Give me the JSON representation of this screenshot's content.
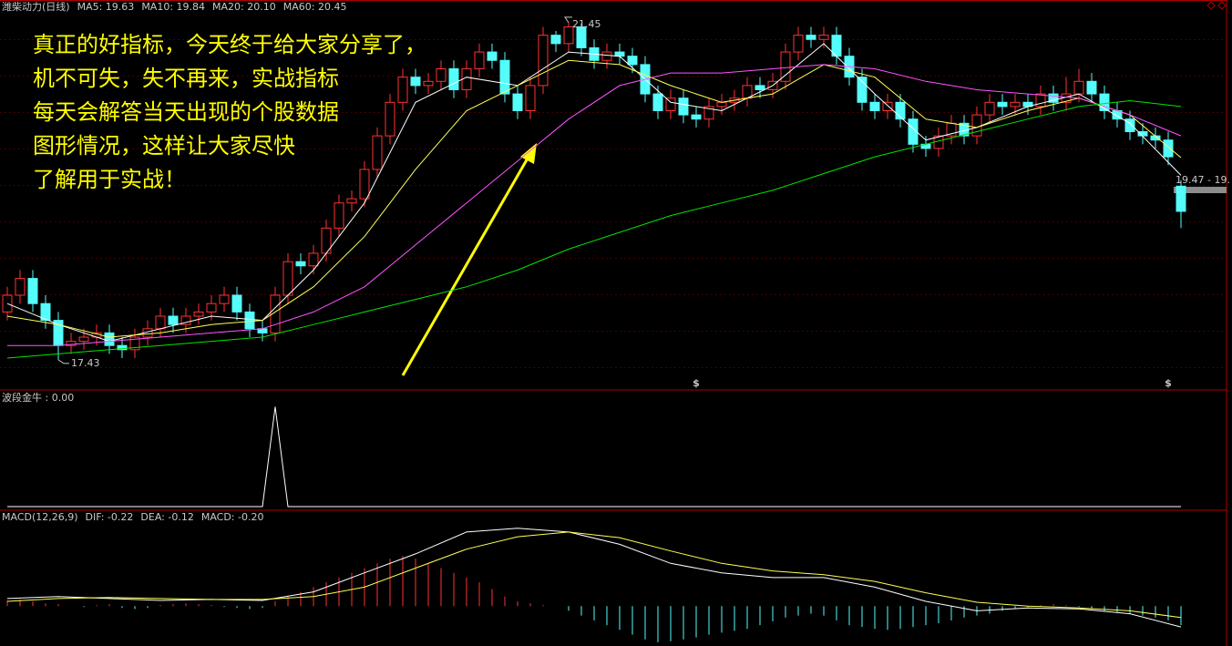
{
  "overlay_text": [
    "真正的好指标，今天终于给大家分享了，",
    "机不可失，失不再来，实战指标",
    "每天会解答当天出现的个股数据",
    "图形情况，这样让大家尽快",
    "了解用于实战！"
  ],
  "chart_data": [
    {
      "type": "candlestick",
      "title": "潍柴动力(日线)",
      "ylim": [
        17.07,
        21.72
      ],
      "up_color": "#ff3232",
      "down_color": "#54fcfc",
      "open": [
        18.0,
        18.2,
        18.4,
        18.1,
        17.9,
        17.6,
        17.65,
        17.7,
        17.75,
        17.6,
        17.55,
        17.7,
        17.8,
        17.95,
        17.85,
        17.95,
        18.0,
        18.1,
        18.2,
        18.0,
        17.8,
        17.75,
        18.2,
        18.6,
        18.55,
        18.7,
        19.0,
        19.3,
        19.35,
        19.7,
        20.1,
        20.5,
        20.8,
        20.7,
        20.75,
        20.9,
        20.65,
        20.9,
        21.1,
        21.0,
        20.6,
        20.4,
        20.7,
        21.3,
        21.2,
        21.4,
        21.15,
        21.0,
        21.1,
        21.05,
        20.95,
        20.6,
        20.4,
        20.55,
        20.35,
        20.3,
        20.45,
        20.5,
        20.55,
        20.7,
        20.65,
        20.75,
        21.1,
        21.3,
        21.25,
        21.3,
        21.05,
        20.8,
        20.5,
        20.4,
        20.5,
        20.3,
        20.0,
        19.95,
        20.1,
        20.25,
        20.1,
        20.35,
        20.5,
        20.45,
        20.5,
        20.45,
        20.6,
        20.5,
        20.6,
        20.75,
        20.6,
        20.4,
        20.3,
        20.15,
        20.1,
        20.05,
        19.5
      ],
      "high": [
        18.3,
        18.5,
        18.5,
        18.2,
        18.0,
        17.75,
        17.8,
        17.85,
        17.85,
        17.7,
        17.8,
        17.9,
        18.05,
        18.05,
        18.05,
        18.1,
        18.2,
        18.3,
        18.3,
        18.1,
        17.9,
        18.3,
        18.7,
        18.7,
        18.8,
        19.1,
        19.4,
        19.45,
        19.8,
        20.2,
        20.6,
        20.9,
        20.9,
        20.85,
        21.0,
        21.0,
        21.0,
        21.2,
        21.2,
        21.1,
        20.7,
        20.8,
        21.4,
        21.35,
        21.45,
        21.44,
        21.25,
        21.2,
        21.2,
        21.15,
        21.05,
        20.7,
        20.65,
        20.65,
        20.45,
        20.55,
        20.6,
        20.65,
        20.8,
        20.8,
        20.85,
        21.2,
        21.4,
        21.4,
        21.4,
        21.4,
        21.15,
        20.9,
        20.6,
        20.6,
        20.6,
        20.4,
        20.1,
        20.2,
        20.35,
        20.35,
        20.45,
        20.6,
        20.6,
        20.6,
        20.6,
        20.7,
        20.7,
        20.8,
        20.9,
        20.85,
        20.7,
        20.5,
        20.4,
        20.25,
        20.2,
        20.15,
        19.57
      ],
      "low": [
        17.9,
        18.1,
        18.0,
        17.8,
        17.43,
        17.5,
        17.55,
        17.6,
        17.5,
        17.45,
        17.45,
        17.6,
        17.7,
        17.75,
        17.75,
        17.85,
        17.9,
        18.0,
        17.9,
        17.7,
        17.65,
        17.65,
        18.1,
        18.45,
        18.45,
        18.6,
        18.9,
        19.2,
        19.25,
        19.6,
        20.0,
        20.4,
        20.6,
        20.6,
        20.65,
        20.55,
        20.55,
        20.8,
        20.9,
        20.5,
        20.3,
        20.3,
        20.6,
        21.1,
        21.1,
        21.05,
        20.9,
        20.9,
        20.95,
        20.85,
        20.5,
        20.3,
        20.3,
        20.25,
        20.2,
        20.2,
        20.35,
        20.4,
        20.45,
        20.55,
        20.55,
        20.65,
        21.0,
        21.15,
        21.15,
        20.95,
        20.7,
        20.4,
        20.3,
        20.3,
        20.2,
        19.9,
        19.85,
        19.85,
        20.0,
        20.0,
        20.0,
        20.25,
        20.35,
        20.35,
        20.35,
        20.35,
        20.4,
        20.4,
        20.5,
        20.5,
        20.3,
        20.2,
        20.05,
        20.0,
        19.95,
        19.75,
        19.0
      ],
      "close": [
        18.2,
        18.4,
        18.1,
        17.9,
        17.6,
        17.65,
        17.7,
        17.75,
        17.6,
        17.55,
        17.7,
        17.8,
        17.95,
        17.85,
        17.95,
        18.0,
        18.1,
        18.2,
        18.0,
        17.8,
        17.75,
        18.2,
        18.6,
        18.55,
        18.7,
        19.0,
        19.3,
        19.35,
        19.7,
        20.1,
        20.5,
        20.8,
        20.7,
        20.75,
        20.9,
        20.65,
        20.9,
        21.1,
        21.0,
        20.6,
        20.4,
        20.7,
        21.3,
        21.2,
        21.4,
        21.15,
        21.0,
        21.1,
        21.05,
        20.95,
        20.6,
        20.4,
        20.55,
        20.35,
        20.3,
        20.45,
        20.5,
        20.55,
        20.7,
        20.65,
        20.75,
        21.1,
        21.3,
        21.25,
        21.3,
        21.05,
        20.8,
        20.5,
        20.4,
        20.5,
        20.3,
        20.0,
        19.95,
        20.1,
        20.25,
        20.1,
        20.35,
        20.5,
        20.45,
        20.5,
        20.45,
        20.6,
        20.5,
        20.6,
        20.75,
        20.6,
        20.4,
        20.3,
        20.15,
        20.1,
        20.05,
        19.85,
        19.2
      ],
      "ma_x": [
        0,
        4,
        8,
        12,
        16,
        20,
        24,
        28,
        32,
        36,
        40,
        44,
        48,
        52,
        56,
        60,
        64,
        68,
        72,
        76,
        80,
        84,
        88,
        92
      ],
      "series": [
        {
          "name": "MA5: 19.63",
          "color": "#ffffff",
          "values": [
            18.1,
            17.85,
            17.65,
            17.8,
            17.95,
            17.9,
            18.5,
            19.3,
            20.5,
            20.8,
            20.7,
            21.1,
            21.05,
            20.5,
            20.4,
            20.7,
            21.2,
            20.6,
            20.05,
            20.2,
            20.45,
            20.6,
            20.25,
            19.63
          ]
        },
        {
          "name": "MA10: 19.84",
          "color": "#ffff54",
          "values": [
            17.95,
            17.85,
            17.7,
            17.75,
            17.85,
            17.9,
            18.3,
            18.9,
            19.7,
            20.4,
            20.7,
            21.0,
            20.95,
            20.7,
            20.5,
            20.6,
            20.95,
            20.8,
            20.3,
            20.2,
            20.4,
            20.55,
            20.35,
            19.84
          ]
        },
        {
          "name": "MA20: 20.10",
          "color": "#ff54ff",
          "values": [
            17.6,
            17.6,
            17.65,
            17.7,
            17.75,
            17.8,
            18.0,
            18.3,
            18.8,
            19.3,
            19.8,
            20.3,
            20.7,
            20.85,
            20.85,
            20.9,
            20.95,
            20.9,
            20.75,
            20.65,
            20.6,
            20.55,
            20.35,
            20.1
          ]
        },
        {
          "name": "MA60: 20.45",
          "color": "#00e600",
          "values": [
            17.45,
            17.5,
            17.55,
            17.6,
            17.65,
            17.7,
            17.85,
            18.0,
            18.15,
            18.3,
            18.5,
            18.75,
            18.95,
            19.15,
            19.3,
            19.45,
            19.65,
            19.85,
            20.0,
            20.15,
            20.3,
            20.45,
            20.52,
            20.45
          ]
        }
      ],
      "high_label": 21.45,
      "low_label": 17.43,
      "price_tag": "19.47 - 19.",
      "signals": {
        "label": "$",
        "x": [
          54,
          91
        ]
      }
    },
    {
      "type": "line",
      "title": "波段金牛 : 0.00",
      "color": "#ffffff",
      "ylim": [
        0,
        1.15
      ],
      "x": [
        0,
        20,
        21,
        22,
        92
      ],
      "values": [
        0,
        0,
        1,
        0,
        0
      ]
    },
    {
      "type": "macd",
      "title": "MACD(12,26,9)",
      "ylim": [
        -0.42,
        0.99
      ],
      "x": [
        0,
        4,
        8,
        12,
        16,
        20,
        24,
        28,
        32,
        36,
        40,
        44,
        48,
        52,
        56,
        60,
        64,
        68,
        72,
        76,
        80,
        84,
        88,
        92
      ],
      "series": [
        {
          "name": "DIF: -0.22",
          "color": "#ffffff",
          "values": [
            0.08,
            0.1,
            0.08,
            0.06,
            0.07,
            0.06,
            0.15,
            0.35,
            0.55,
            0.78,
            0.82,
            0.78,
            0.65,
            0.45,
            0.35,
            0.3,
            0.3,
            0.2,
            0.05,
            -0.05,
            -0.02,
            -0.03,
            -0.08,
            -0.22
          ]
        },
        {
          "name": "DEA: -0.12",
          "color": "#ffff54",
          "values": [
            0.05,
            0.08,
            0.09,
            0.08,
            0.07,
            0.07,
            0.1,
            0.2,
            0.4,
            0.6,
            0.73,
            0.78,
            0.72,
            0.58,
            0.45,
            0.37,
            0.33,
            0.26,
            0.14,
            0.04,
            0.0,
            -0.02,
            -0.05,
            -0.12
          ]
        }
      ],
      "histogram": {
        "name": "MACD: -0.20",
        "color": "#ff54ff",
        "up_color": "#ff3232",
        "down_color": "#54fcfc",
        "values": [
          0.06,
          0.07,
          0.05,
          0.03,
          0.02,
          0.0,
          -0.01,
          0.01,
          0.02,
          -0.02,
          -0.03,
          -0.02,
          0.01,
          0.02,
          0.03,
          0.02,
          0.01,
          -0.01,
          -0.02,
          -0.03,
          -0.02,
          0.05,
          0.1,
          0.15,
          0.2,
          0.25,
          0.3,
          0.35,
          0.4,
          0.45,
          0.5,
          0.53,
          0.5,
          0.45,
          0.4,
          0.35,
          0.3,
          0.25,
          0.18,
          0.1,
          0.05,
          0.03,
          0.01,
          0.0,
          -0.05,
          -0.1,
          -0.15,
          -0.2,
          -0.25,
          -0.3,
          -0.35,
          -0.38,
          -0.37,
          -0.35,
          -0.33,
          -0.3,
          -0.28,
          -0.26,
          -0.24,
          -0.2,
          -0.16,
          -0.12,
          -0.1,
          -0.08,
          -0.1,
          -0.15,
          -0.2,
          -0.22,
          -0.24,
          -0.25,
          -0.24,
          -0.22,
          -0.2,
          -0.18,
          -0.15,
          -0.12,
          -0.1,
          -0.08,
          -0.05,
          -0.03,
          -0.01,
          0.01,
          0.02,
          0.01,
          -0.01,
          -0.03,
          -0.05,
          -0.07,
          -0.08,
          -0.1,
          -0.12,
          -0.15,
          -0.2
        ]
      }
    }
  ]
}
